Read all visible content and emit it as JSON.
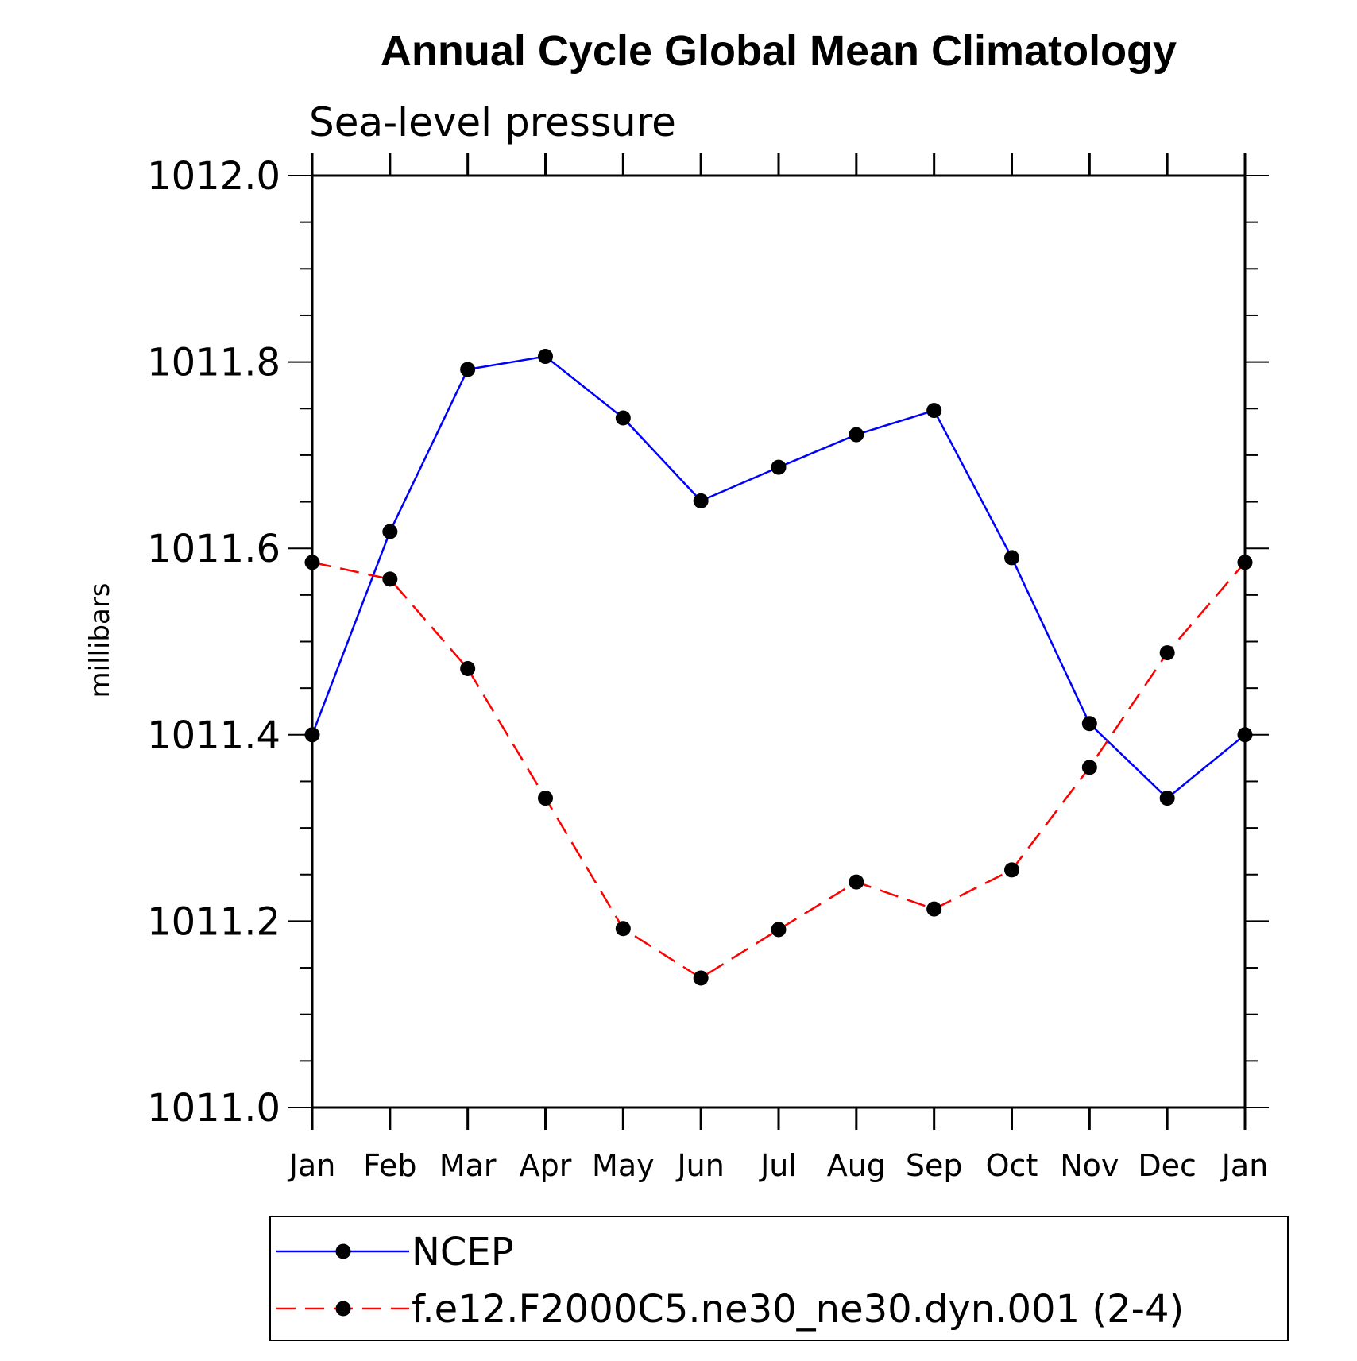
{
  "chart_data": {
    "type": "line",
    "title": "Annual Cycle Global Mean Climatology",
    "subtitle": "Sea-level pressure",
    "ylabel": "millibars",
    "xlabel": "",
    "categories": [
      "Jan",
      "Feb",
      "Mar",
      "Apr",
      "May",
      "Jun",
      "Jul",
      "Aug",
      "Sep",
      "Oct",
      "Nov",
      "Dec",
      "Jan"
    ],
    "ylim": [
      1011.0,
      1012.0
    ],
    "yticks": [
      "1011.0",
      "1011.2",
      "1011.4",
      "1011.6",
      "1011.8",
      "1012.0"
    ],
    "grid": false,
    "legend_position": "bottom",
    "series": [
      {
        "name": "NCEP",
        "color": "#0000ff",
        "line_style": "solid",
        "marker": "filled-circle",
        "values": [
          1011.4,
          1011.618,
          1011.792,
          1011.806,
          1011.74,
          1011.651,
          1011.687,
          1011.722,
          1011.748,
          1011.59,
          1011.412,
          1011.332,
          1011.4
        ]
      },
      {
        "name": "f.e12.F2000C5.ne30_ne30.dyn.001 (2-4)",
        "color": "#ff0000",
        "line_style": "dashed",
        "marker": "filled-circle",
        "values": [
          1011.585,
          1011.567,
          1011.471,
          1011.332,
          1011.192,
          1011.139,
          1011.191,
          1011.242,
          1011.213,
          1011.255,
          1011.365,
          1011.488,
          1011.585
        ]
      }
    ]
  }
}
